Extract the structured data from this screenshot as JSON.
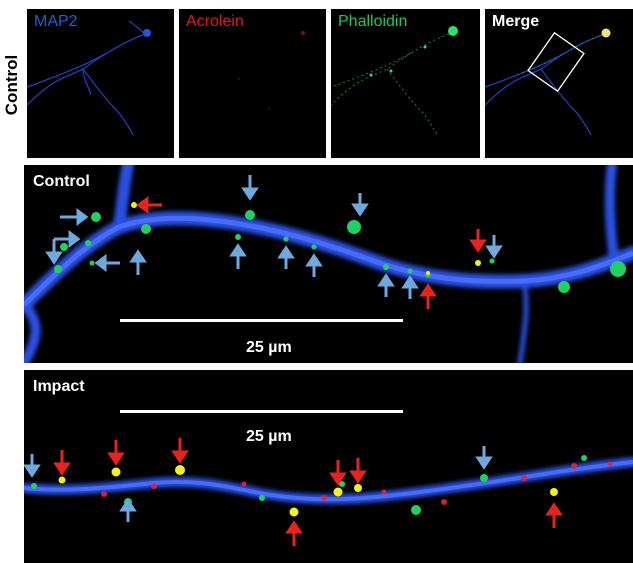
{
  "row_label": "Control",
  "channels": [
    {
      "label": "MAP2",
      "color": "#1f5fd6"
    },
    {
      "label": "Acrolein",
      "color": "#e01b1b"
    },
    {
      "label": "Phalloidin",
      "color": "#22c45a"
    },
    {
      "label": "Merge",
      "color": "#ffffff"
    }
  ],
  "control_panel": {
    "title": "Control",
    "scale_label": "25 µm"
  },
  "impact_panel": {
    "title": "Impact",
    "scale_label": "25 µm"
  },
  "colors": {
    "dendrite": "#2a4fe0",
    "phalloidin": "#22d060",
    "acrolein": "#e0263a",
    "colocalized": "#f2f21e",
    "arrow_blue": "#6fa8dc",
    "arrow_red": "#e8231f"
  }
}
